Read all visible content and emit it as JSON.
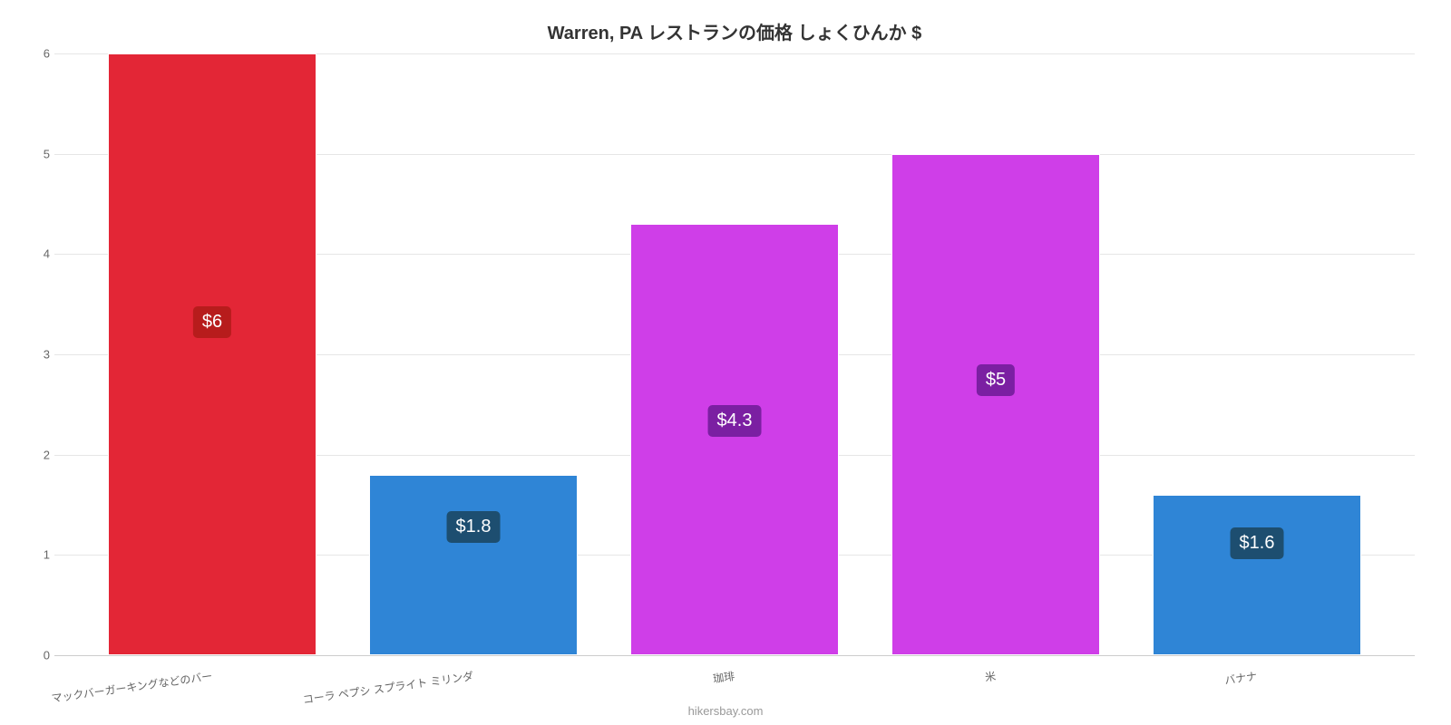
{
  "chart": {
    "type": "bar",
    "title": "Warren, PA レストランの価格 しょくひんか $",
    "title_fontsize": 20,
    "title_color": "#333333",
    "background_color": "#ffffff",
    "grid_color": "#e6e6e6",
    "axis_color": "#cccccc",
    "ylim": [
      0,
      6
    ],
    "ytick_step": 1,
    "yticks": [
      0,
      1,
      2,
      3,
      4,
      5,
      6
    ],
    "bar_width_ratio": 0.8,
    "categories": [
      "マックバーガーキングなどのバー",
      "コーラ ペプシ スプライト ミリンダ",
      "珈琲",
      "米",
      "バナナ"
    ],
    "values": [
      6,
      1.8,
      4.3,
      5,
      1.6
    ],
    "value_labels": [
      "$6",
      "$1.8",
      "$4.3",
      "$5",
      "$1.6"
    ],
    "bar_colors": [
      "#e32636",
      "#2f85d6",
      "#cf3ee8",
      "#cf3ee8",
      "#2f85d6"
    ],
    "badge_colors": [
      "#b71c1c",
      "#1d4e70",
      "#7b1fa2",
      "#7b1fa2",
      "#1d4e70"
    ],
    "badge_text_color": "#ffffff",
    "badge_fontsize": 20,
    "x_label_fontsize": 12,
    "x_label_color": "#666666",
    "y_label_fontsize": 13,
    "y_label_color": "#666666",
    "attribution": "hikersbay.com",
    "attribution_color": "#999999",
    "attribution_fontsize": 13
  }
}
